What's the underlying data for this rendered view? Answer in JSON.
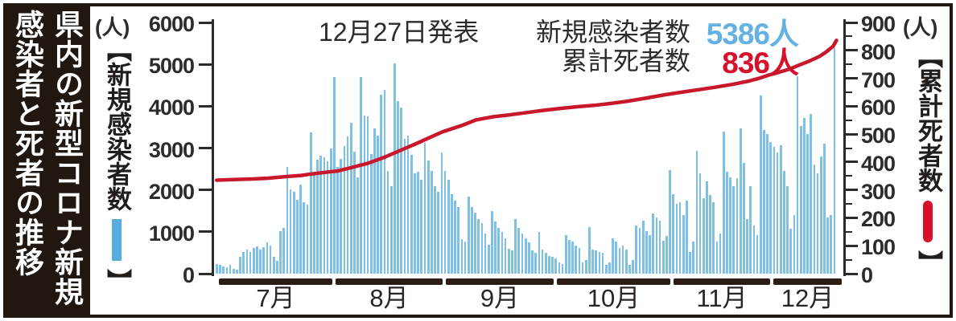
{
  "banner": {
    "title": "県内の新型コロナ新規\n感染者と死者の推移"
  },
  "header": {
    "announce_date": "12月27日発表",
    "new_cases_label": "新規感染者数",
    "new_cases_value": "5386人",
    "deaths_label": "累計死者数",
    "deaths_value": "836人"
  },
  "left_axis": {
    "unit": "(人)",
    "label_open": "【新規感染者数",
    "label_close": "】",
    "ticks": [
      6000,
      5000,
      4000,
      3000,
      2000,
      1000,
      0
    ]
  },
  "right_axis": {
    "unit": "(人)",
    "label_open": "【累計死者数",
    "label_close": "】",
    "ticks": [
      900,
      800,
      700,
      600,
      500,
      400,
      300,
      200,
      100,
      0
    ]
  },
  "x_axis": {
    "months": [
      "7月",
      "8月",
      "9月",
      "10月",
      "11月",
      "12月"
    ]
  },
  "colors": {
    "bar_blue": "#7fc0e5",
    "legend_blue": "#58ade0",
    "value_blue": "#63b2e3",
    "line_red": "#c9182b",
    "legend_red": "#d6112b",
    "banner_black": "#201711",
    "month_bar_black": "#2b1d15"
  },
  "chart_data": {
    "type": "bar",
    "title": "12月27日発表 新規感染者数 5386人 累計死者数 836人",
    "left_ylabel": "新規感染者数",
    "right_ylabel": "累計死者数",
    "left_ylim": [
      0,
      6000
    ],
    "right_ylim": [
      0,
      900
    ],
    "x_months": [
      "7月",
      "8月",
      "9月",
      "10月",
      "11月",
      "12月"
    ],
    "bar_series": {
      "name": "新規感染者数",
      "note": "daily values, late June through 12月27日 (approx, read from chart)",
      "values": [
        240,
        220,
        180,
        160,
        210,
        110,
        100,
        395,
        520,
        570,
        520,
        615,
        660,
        580,
        630,
        740,
        680,
        395,
        300,
        1020,
        1085,
        2560,
        2020,
        1960,
        1770,
        2120,
        1710,
        1650,
        3370,
        2400,
        2715,
        2810,
        2780,
        2680,
        3000,
        4700,
        2550,
        2750,
        3050,
        3270,
        3600,
        2920,
        2300,
        4700,
        3780,
        3750,
        2850,
        3465,
        3300,
        4280,
        4400,
        2450,
        2100,
        5030,
        4120,
        3970,
        3215,
        3300,
        2840,
        2400,
        2430,
        2250,
        3120,
        2700,
        2460,
        2100,
        1960,
        2900,
        2450,
        2250,
        1900,
        1750,
        1600,
        830,
        760,
        1850,
        1600,
        1450,
        1300,
        1200,
        950,
        700,
        1500,
        1250,
        1100,
        1000,
        850,
        600,
        550,
        1300,
        1100,
        950,
        850,
        750,
        550,
        500,
        1000,
        580,
        490,
        425,
        395,
        365,
        270,
        240,
        930,
        800,
        770,
        675,
        615,
        270,
        330,
        1115,
        580,
        550,
        520,
        490,
        205,
        270,
        835,
        770,
        615,
        675,
        580,
        205,
        330,
        1145,
        1085,
        1270,
        1020,
        930,
        1430,
        1335,
        1270,
        785,
        895,
        2475,
        1900,
        1660,
        1710,
        1400,
        1740,
        520,
        770,
        2930,
        2400,
        1805,
        2210,
        1870,
        1710,
        770,
        960,
        3400,
        2430,
        2305,
        2085,
        2275,
        3465,
        2650,
        1300,
        2090,
        1150,
        930,
        4250,
        3435,
        3340,
        3150,
        3030,
        2900,
        3060,
        2460,
        2090,
        1080,
        1400,
        4720,
        3530,
        3715,
        3340,
        3810,
        2600,
        2400,
        2800,
        3100,
        1335,
        1400,
        5386
      ]
    },
    "line_series": {
      "name": "累計死者数",
      "note": "cumulative deaths, sampled points [day_index, value] (approx, read from chart)",
      "points": [
        [
          0,
          335
        ],
        [
          5,
          337
        ],
        [
          10,
          339
        ],
        [
          15,
          342
        ],
        [
          20,
          347
        ],
        [
          25,
          352
        ],
        [
          30,
          360
        ],
        [
          36,
          368
        ],
        [
          40,
          380
        ],
        [
          45,
          396
        ],
        [
          50,
          418
        ],
        [
          55,
          444
        ],
        [
          60,
          470
        ],
        [
          64,
          492
        ],
        [
          67,
          508
        ],
        [
          70,
          520
        ],
        [
          73,
          532
        ],
        [
          77,
          551
        ],
        [
          82,
          562
        ],
        [
          87,
          569
        ],
        [
          92,
          577
        ],
        [
          97,
          585
        ],
        [
          102,
          592
        ],
        [
          107,
          598
        ],
        [
          112,
          603
        ],
        [
          117,
          610
        ],
        [
          122,
          618
        ],
        [
          128,
          630
        ],
        [
          133,
          641
        ],
        [
          138,
          650
        ],
        [
          143,
          659
        ],
        [
          148,
          668
        ],
        [
          153,
          678
        ],
        [
          158,
          690
        ],
        [
          161,
          700
        ],
        [
          164,
          712
        ],
        [
          167,
          722
        ],
        [
          170,
          733
        ],
        [
          173,
          748
        ],
        [
          176,
          762
        ],
        [
          179,
          779
        ],
        [
          181,
          795
        ],
        [
          183,
          815
        ],
        [
          184,
          836
        ]
      ]
    }
  }
}
